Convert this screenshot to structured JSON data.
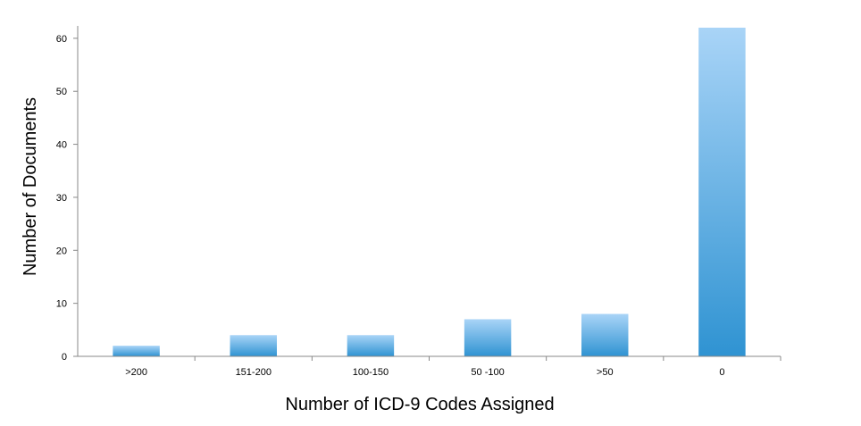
{
  "chart_data": {
    "type": "bar",
    "title": "",
    "xlabel": "Number of ICD-9 Codes Assigned",
    "ylabel": "Number of Documents",
    "categories": [
      ">200",
      "151-200",
      "100-150",
      "50 -100",
      ">50",
      "0"
    ],
    "values": [
      2,
      4,
      4,
      7,
      8,
      62
    ],
    "ylim": [
      0,
      62
    ],
    "yticks": [
      0,
      10,
      20,
      30,
      40,
      50,
      60
    ],
    "grid": false,
    "legend": "none",
    "colors": {
      "bar_top": "#a9d4f7",
      "bar_bottom": "#2f93d2",
      "axis": "#888888"
    }
  }
}
